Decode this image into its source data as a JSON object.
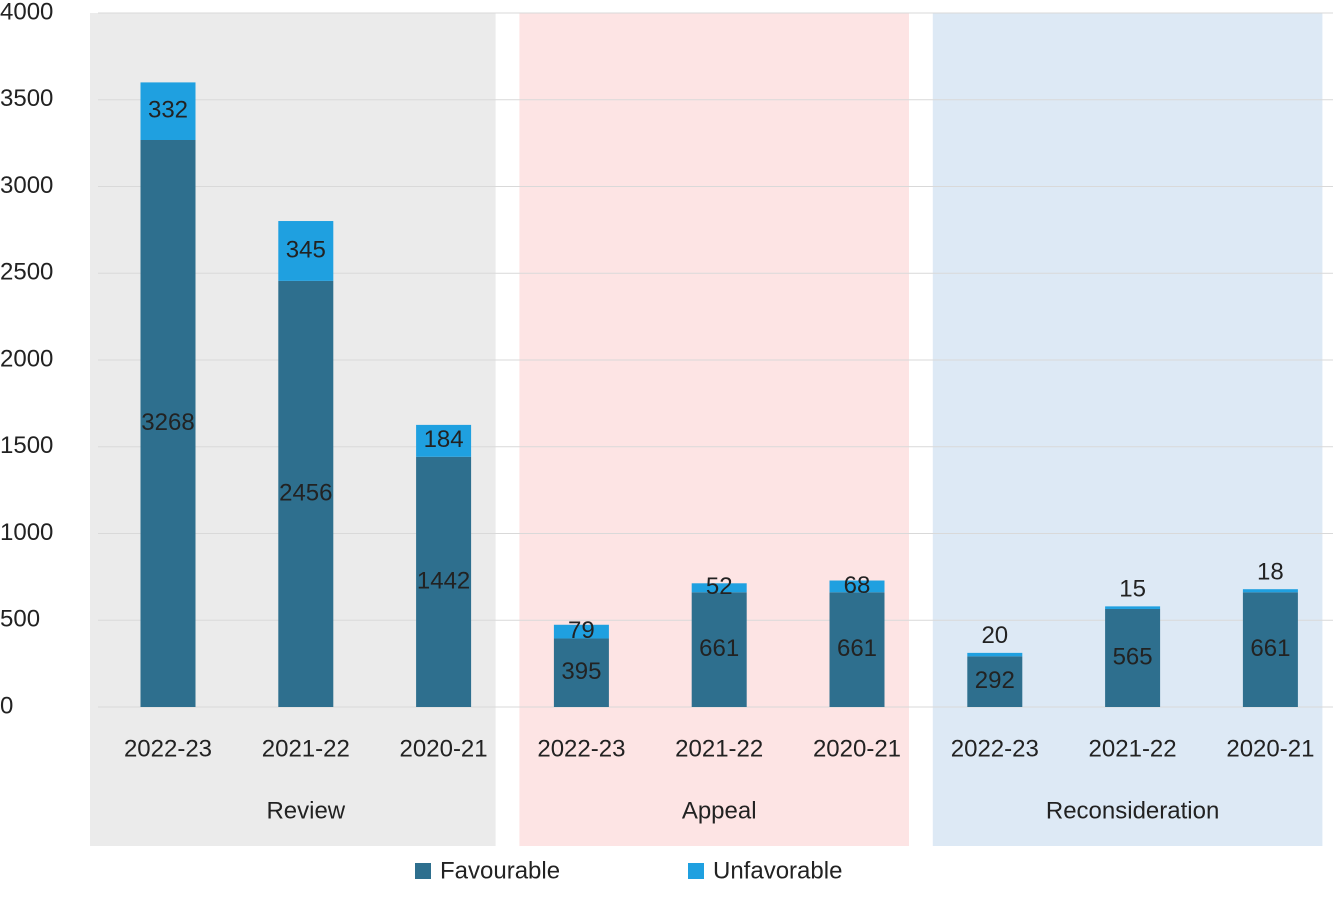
{
  "chart_data": {
    "type": "stacked_bar",
    "categories": [
      "2022-23",
      "2021-22",
      "2020-21",
      "2022-23",
      "2021-22",
      "2020-21",
      "2022-23",
      "2021-22",
      "2020-21"
    ],
    "groups": [
      "Review",
      "Appeal",
      "Reconsideration"
    ],
    "group_colors": [
      "#ebebeb",
      "#fde4e4",
      "#dde9f5"
    ],
    "series": [
      {
        "name": "Favourable",
        "color": "#2e6f8e",
        "values": [
          3268,
          2456,
          1442,
          395,
          661,
          661,
          292,
          565,
          661
        ]
      },
      {
        "name": "Unfavorable",
        "color": "#1fa0e0",
        "values": [
          332,
          345,
          184,
          79,
          52,
          68,
          20,
          15,
          18
        ]
      }
    ],
    "ylim": [
      0,
      4000
    ],
    "yticks": [
      0,
      500,
      1000,
      1500,
      2000,
      2500,
      3000,
      3500,
      4000
    ],
    "grid": true,
    "legend": "bottom"
  }
}
